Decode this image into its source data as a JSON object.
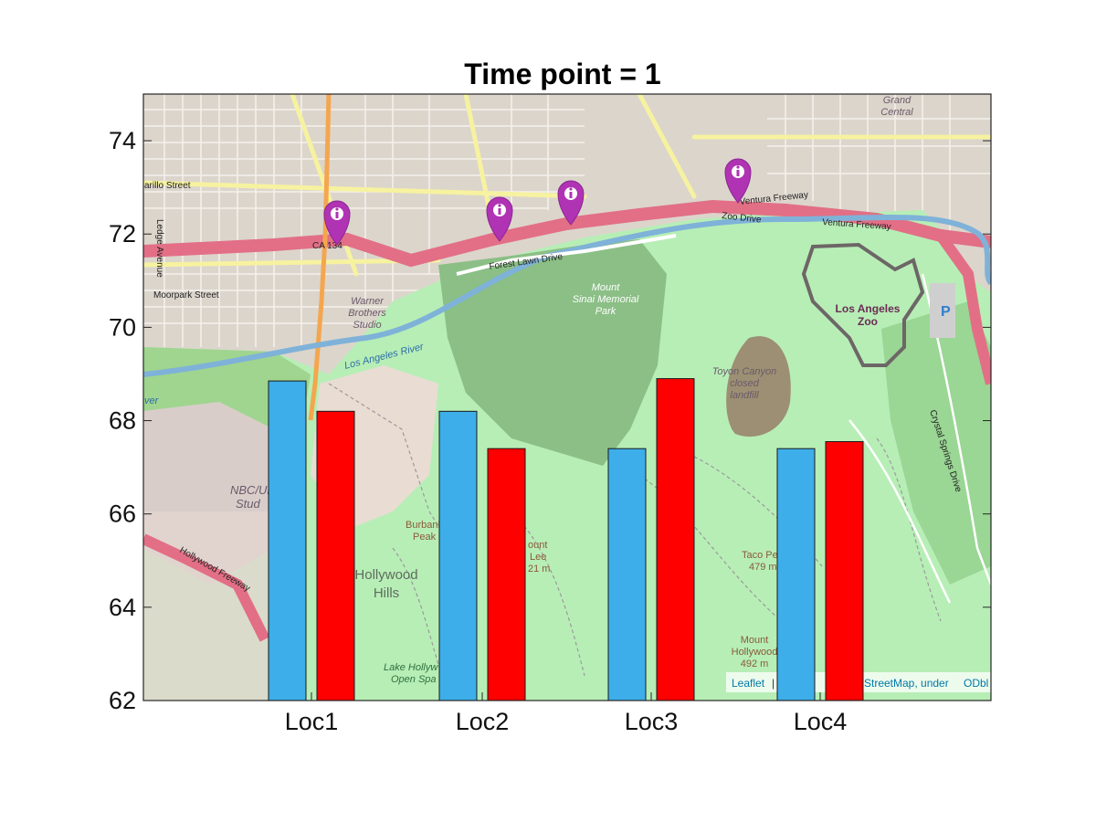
{
  "chart_data": {
    "type": "bar",
    "title": "Time point = 1",
    "categories": [
      "Loc1",
      "Loc2",
      "Loc3",
      "Loc4"
    ],
    "series": [
      {
        "values": [
          68.85,
          68.2,
          67.4,
          67.4
        ],
        "color": "#3daee9"
      },
      {
        "values": [
          68.2,
          67.4,
          68.9,
          67.55
        ],
        "color": "#ff0000"
      }
    ],
    "ylim": [
      62,
      75
    ],
    "yticks": [
      62,
      64,
      66,
      68,
      70,
      72,
      74
    ],
    "grid": false,
    "legend": "none",
    "background": "street map"
  },
  "map": {
    "labels": {
      "warner": [
        "Warner",
        "Brothers",
        "Studio"
      ],
      "mount_sinai": [
        "Mount",
        "Sinai Memorial",
        "Park"
      ],
      "la_zoo": [
        "Los Angeles",
        "Zoo"
      ],
      "toyon": [
        "Toyon Canyon",
        "closed",
        "landfill"
      ],
      "hollywood_hills": [
        "Hollywood",
        "Hills"
      ],
      "nbc": [
        "NBC/Uni",
        "Stud"
      ],
      "burbank_peak": [
        "Burbank",
        "Peak"
      ],
      "mount_lee": [
        "ount",
        "Lee",
        "21 m"
      ],
      "taco_peak": [
        "Taco Pea",
        "479 m"
      ],
      "mount_hollywood": [
        "Mount",
        "Hollywood",
        "492 m"
      ],
      "lake": [
        "Lake Hollyw",
        "Open Spa"
      ],
      "grand_central": [
        "Grand",
        "Central"
      ],
      "la_river": "Los Angeles River",
      "forest_lawn": "Forest Lawn Drive",
      "zoo_drive": "Zoo Drive",
      "ventura_fwy": "Ventura Freeway",
      "moorpark": "Moorpark Street",
      "riverside": "arillo Street",
      "ledge": "Ledge Avenue",
      "crystal_springs": "Crystal Springs Drive",
      "hollywood_fwy": "Hollywood Freeway",
      "ca134": "CA 134",
      "river": "ver",
      "parking": "P"
    },
    "attribution": {
      "leaflet": "Leaflet",
      "sep": "|",
      "middle": "StreetMap, under ",
      "odbl": "ODbl"
    },
    "marker_icon": "info-map-pin-icon"
  }
}
